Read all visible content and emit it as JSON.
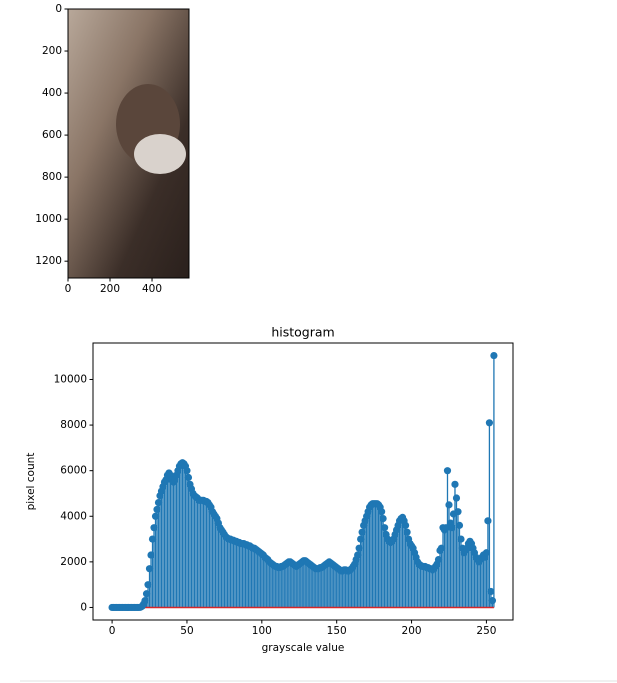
{
  "chart_data": [
    {
      "type": "image",
      "xlim": [
        0,
        576
      ],
      "ylim": [
        1280,
        0
      ],
      "xticks": [
        0,
        200,
        400
      ],
      "yticks": [
        0,
        200,
        400,
        600,
        800,
        1000,
        1200
      ]
    },
    {
      "type": "stem",
      "title": "histogram",
      "x_label": "grayscale value",
      "y_label": "pixel count",
      "color": "#1f77b4",
      "baseline_color": "#d62728",
      "xlim": [
        -12.75,
        267.75
      ],
      "ylim": [
        -550,
        11600
      ],
      "xticks": [
        0,
        50,
        100,
        150,
        200,
        250
      ],
      "yticks": [
        0,
        2000,
        4000,
        6000,
        8000,
        10000
      ],
      "values": [
        0,
        0,
        0,
        0,
        0,
        0,
        0,
        0,
        0,
        0,
        0,
        0,
        0,
        0,
        0,
        0,
        0,
        0,
        0,
        10,
        50,
        150,
        300,
        600,
        1000,
        1700,
        2300,
        3000,
        3500,
        4000,
        4300,
        4600,
        4900,
        5100,
        5300,
        5500,
        5600,
        5800,
        5900,
        5800,
        5600,
        5500,
        5600,
        5800,
        6000,
        6200,
        6300,
        6350,
        6300,
        6200,
        6000,
        5700,
        5400,
        5200,
        5000,
        4900,
        4850,
        4800,
        4700,
        4700,
        4700,
        4700,
        4650,
        4650,
        4600,
        4500,
        4400,
        4200,
        4100,
        4000,
        3900,
        3700,
        3500,
        3400,
        3300,
        3200,
        3100,
        3050,
        3000,
        3000,
        2950,
        2950,
        2900,
        2900,
        2850,
        2850,
        2800,
        2800,
        2800,
        2750,
        2750,
        2700,
        2700,
        2650,
        2600,
        2600,
        2550,
        2500,
        2450,
        2400,
        2350,
        2300,
        2200,
        2150,
        2100,
        2000,
        1950,
        1900,
        1850,
        1800,
        1800,
        1750,
        1750,
        1800,
        1800,
        1850,
        1900,
        1950,
        2000,
        2000,
        1950,
        1900,
        1850,
        1800,
        1850,
        1900,
        1950,
        2000,
        2050,
        2050,
        2000,
        1950,
        1900,
        1850,
        1800,
        1750,
        1700,
        1700,
        1700,
        1750,
        1750,
        1800,
        1850,
        1900,
        1950,
        2000,
        1950,
        1900,
        1850,
        1800,
        1750,
        1700,
        1650,
        1600,
        1600,
        1650,
        1650,
        1600,
        1600,
        1650,
        1700,
        1800,
        1900,
        2100,
        2300,
        2600,
        3000,
        3300,
        3600,
        3800,
        4000,
        4200,
        4400,
        4500,
        4550,
        4550,
        4550,
        4550,
        4500,
        4400,
        4200,
        3900,
        3500,
        3200,
        3000,
        2900,
        2850,
        2900,
        3000,
        3200,
        3400,
        3600,
        3800,
        3900,
        3950,
        3800,
        3600,
        3300,
        3000,
        2800,
        2700,
        2600,
        2400,
        2200,
        2000,
        1900,
        1850,
        1800,
        1800,
        1800,
        1750,
        1750,
        1700,
        1700,
        1650,
        1700,
        1800,
        1900,
        2100,
        2500,
        2600,
        3500,
        3400,
        3500,
        6000,
        4500,
        3700,
        3500,
        4100,
        5400,
        4800,
        4200,
        3600,
        3000,
        2600,
        2400,
        2500,
        2600,
        2800,
        2900,
        2800,
        2600,
        2400,
        2200,
        2100,
        2000,
        2100,
        2200,
        2300,
        2200,
        2400,
        3800,
        8100,
        700,
        300,
        11050
      ]
    }
  ]
}
